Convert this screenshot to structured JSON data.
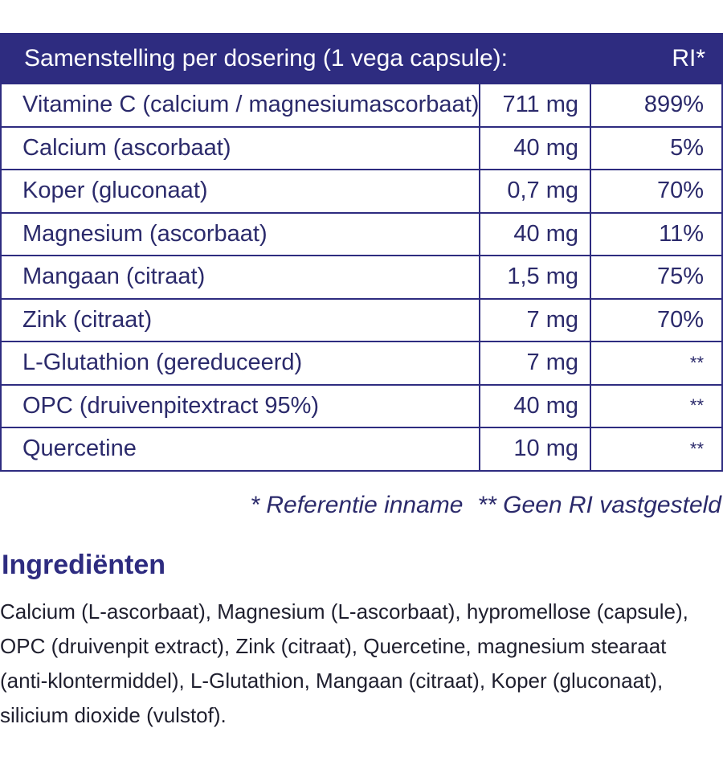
{
  "table": {
    "header": {
      "composition": "Samenstelling per dosering (1 vega capsule):",
      "ri": "RI*"
    },
    "rows": [
      {
        "name": "Vitamine C (calcium / magnesiumascorbaat)",
        "amount": "711 mg",
        "ri": "899%"
      },
      {
        "name": "Calcium (ascorbaat)",
        "amount": "40 mg",
        "ri": "5%"
      },
      {
        "name": "Koper (gluconaat)",
        "amount": "0,7 mg",
        "ri": "70%"
      },
      {
        "name": "Magnesium (ascorbaat)",
        "amount": "40 mg",
        "ri": "11%"
      },
      {
        "name": "Mangaan (citraat)",
        "amount": "1,5 mg",
        "ri": "75%"
      },
      {
        "name": "Zink (citraat)",
        "amount": "7 mg",
        "ri": "70%"
      },
      {
        "name": "L-Glutathion (gereduceerd)",
        "amount": "7 mg",
        "ri": "**"
      },
      {
        "name": "OPC (druivenpitextract 95%)",
        "amount": "40 mg",
        "ri": "**"
      },
      {
        "name": "Quercetine",
        "amount": "10 mg",
        "ri": "**"
      }
    ]
  },
  "footnotes": {
    "reference": "* Referentie inname",
    "no_ri": "** Geen RI vastgesteld"
  },
  "ingredients": {
    "title": "Ingrediënten",
    "text": "Calcium (L-ascorbaat), Magnesium (L-ascorbaat), hypromellose (capsule), OPC (druivenpit extract), Zink (citraat), Quercetine, magnesium stearaat (anti-klontermiddel), L-Glutathion, Mangaan (citraat), Koper (gluconaat), silicium dioxide (vulstof)."
  },
  "colors": {
    "header_bg": "#2e2c80",
    "text": "#2b2a6b"
  }
}
